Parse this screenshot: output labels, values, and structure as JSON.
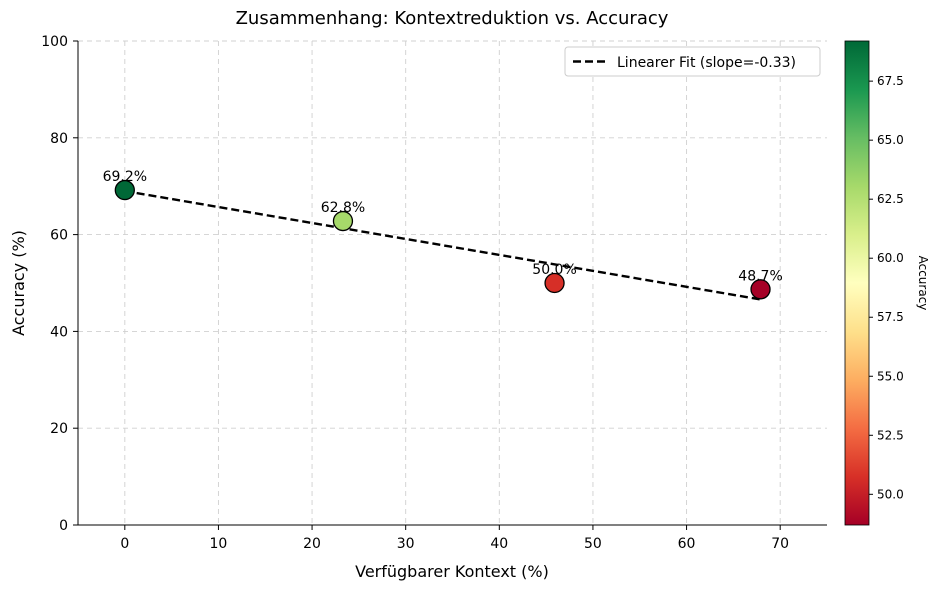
{
  "chart_data": {
    "type": "scatter",
    "title": "Zusammenhang: Kontextreduktion vs. Accuracy",
    "xlabel": "Verfügbarer Kontext (%)",
    "ylabel": "Accuracy (%)",
    "xlim": [
      -5,
      75
    ],
    "ylim": [
      0,
      100
    ],
    "xticks": [
      0,
      10,
      20,
      30,
      40,
      50,
      60,
      70
    ],
    "yticks": [
      0,
      20,
      40,
      60,
      80,
      100
    ],
    "grid": true,
    "legend": {
      "placement": "top-right",
      "entries": [
        "Linearer Fit (slope=-0.33)"
      ]
    },
    "points": [
      {
        "x": 0,
        "y": 69.2,
        "label": "69.2%",
        "color": "#006837"
      },
      {
        "x": 23.3,
        "y": 62.8,
        "label": "62.8%",
        "color": "#a6d96a"
      },
      {
        "x": 45.9,
        "y": 50.0,
        "label": "50.0%",
        "color": "#d62f27"
      },
      {
        "x": 67.9,
        "y": 48.7,
        "label": "48.7%",
        "color": "#a50026"
      }
    ],
    "fit_line": {
      "slope": -0.33,
      "x_start": 0,
      "x_end": 67.9,
      "y_start": 69.0,
      "y_end": 46.6
    },
    "colorbar": {
      "label": "Accuracy",
      "min": 48.7,
      "max": 69.2,
      "ticks": [
        "50.0",
        "52.5",
        "55.0",
        "57.5",
        "60.0",
        "62.5",
        "65.0",
        "67.5"
      ],
      "colormap": [
        "#a50026",
        "#d73027",
        "#f46d43",
        "#fdae61",
        "#fee08b",
        "#ffffbf",
        "#d9ef8b",
        "#a6d96a",
        "#66bd63",
        "#1a9850",
        "#006837"
      ]
    }
  }
}
